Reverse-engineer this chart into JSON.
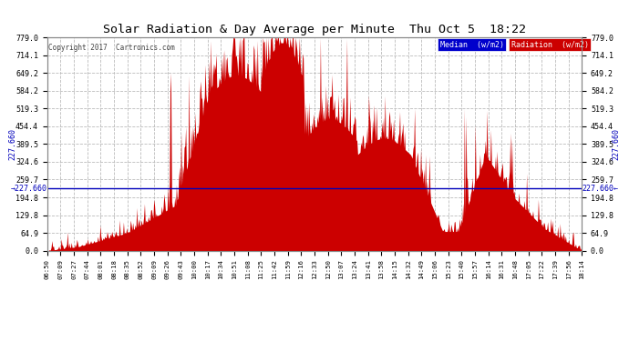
{
  "title": "Solar Radiation & Day Average per Minute  Thu Oct 5  18:22",
  "copyright": "Copyright 2017  Cartronics.com",
  "legend_median_label": "Median  (w/m2)",
  "legend_radiation_label": "Radiation  (w/m2)",
  "median_value": 227.66,
  "ylim": [
    0,
    779.0
  ],
  "yticks": [
    0.0,
    64.9,
    129.8,
    194.8,
    259.7,
    324.6,
    389.5,
    454.4,
    519.3,
    584.2,
    649.2,
    714.1,
    779.0
  ],
  "background_color": "#ffffff",
  "plot_bg_color": "#ffffff",
  "grid_color": "#bbbbbb",
  "fill_color": "#cc0000",
  "median_line_color": "#0000bb",
  "xtick_labels": [
    "06:50",
    "07:09",
    "07:27",
    "07:44",
    "08:01",
    "08:18",
    "08:35",
    "08:52",
    "09:09",
    "09:26",
    "09:43",
    "10:00",
    "10:17",
    "10:34",
    "10:51",
    "11:08",
    "11:25",
    "11:42",
    "11:59",
    "12:16",
    "12:33",
    "12:50",
    "13:07",
    "13:24",
    "13:41",
    "13:58",
    "14:15",
    "14:32",
    "14:49",
    "15:06",
    "15:23",
    "15:40",
    "15:57",
    "16:14",
    "16:31",
    "16:48",
    "17:05",
    "17:22",
    "17:39",
    "17:56",
    "18:14"
  ],
  "num_points": 688,
  "legend_median_bg": "#0000cc",
  "legend_radiation_bg": "#cc0000"
}
